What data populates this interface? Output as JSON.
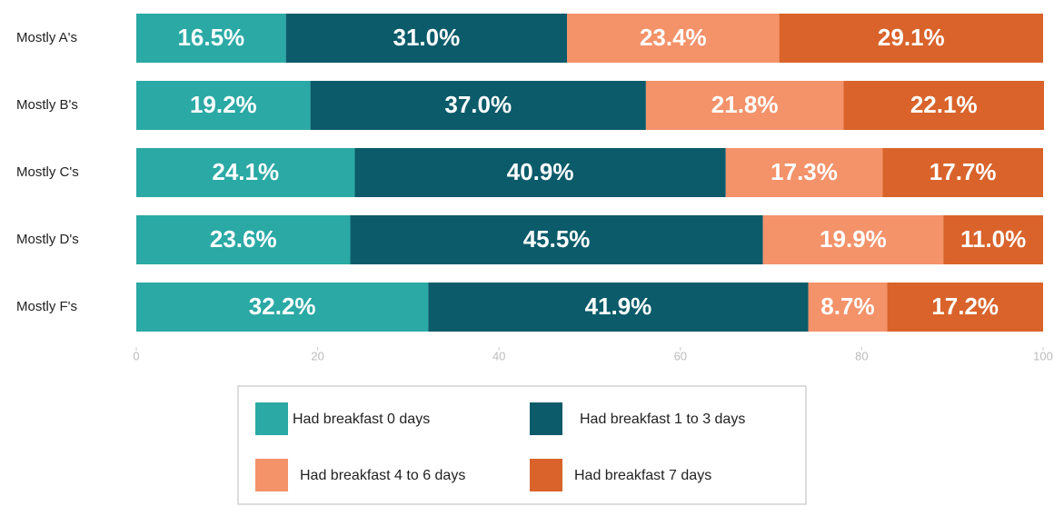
{
  "chart_data": {
    "type": "stacked-bar",
    "orientation": "horizontal",
    "categories": [
      "Mostly A's",
      "Mostly B's",
      "Mostly C's",
      "Mostly D's",
      "Mostly F's"
    ],
    "series": [
      {
        "name": "Had breakfast 0 days",
        "color": "#2aa9a5",
        "values": [
          16.5,
          19.2,
          24.1,
          23.6,
          32.2
        ],
        "value_labels": [
          "16.5%",
          "19.2%",
          "24.1%",
          "23.6%",
          "32.2%"
        ]
      },
      {
        "name": "Had breakfast 1 to 3 days",
        "color": "#0b5b6a",
        "values": [
          31.0,
          37.0,
          40.9,
          45.5,
          41.9
        ],
        "value_labels": [
          "31.0%",
          "37.0%",
          "40.9%",
          "45.5%",
          "41.9%"
        ]
      },
      {
        "name": "Had breakfast 4 to 6 days",
        "color": "#f4926a",
        "values": [
          23.4,
          21.8,
          17.3,
          19.9,
          8.7
        ],
        "value_labels": [
          "23.4%",
          "21.8%",
          "17.3%",
          "19.9%",
          "8.7%"
        ]
      },
      {
        "name": "Had breakfast 7 days",
        "color": "#d9632a",
        "values": [
          29.1,
          22.1,
          17.7,
          11.0,
          17.2
        ],
        "value_labels": [
          "29.1%",
          "22.1%",
          "17.7%",
          "11.0%",
          "17.2%"
        ]
      }
    ],
    "xlim": [
      0,
      100
    ],
    "xticks": [
      0,
      20,
      40,
      60,
      80,
      100
    ],
    "legend": "bottom"
  }
}
